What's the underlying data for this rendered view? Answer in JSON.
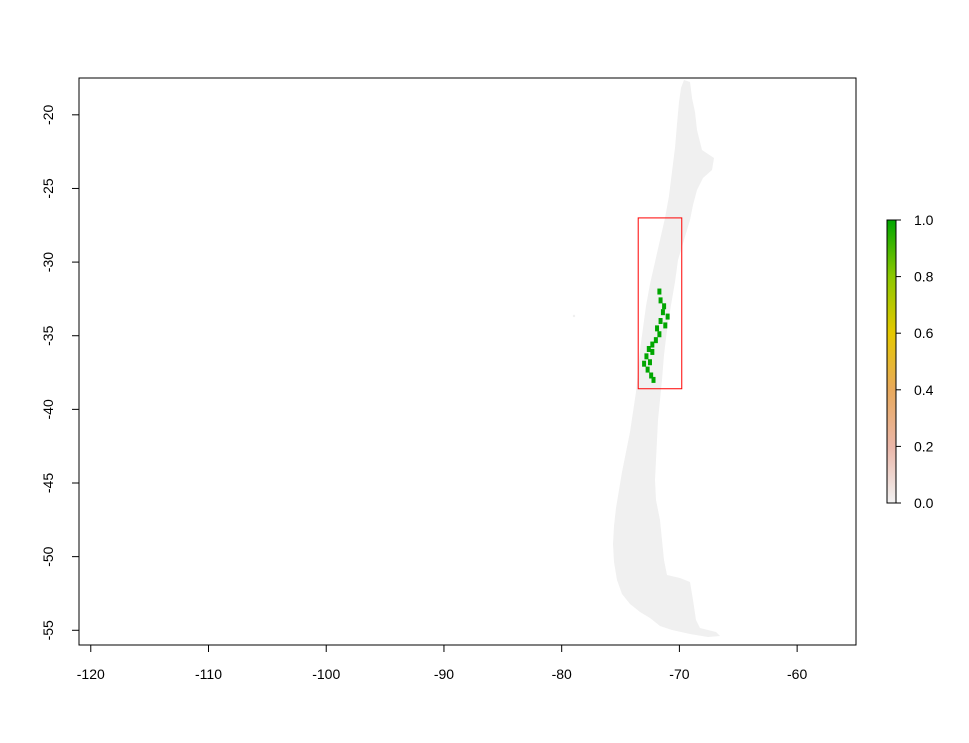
{
  "chart_data": {
    "type": "heatmap",
    "title": "",
    "xlabel": "",
    "ylabel": "",
    "xlim": [
      -121,
      -55
    ],
    "ylim": [
      -56,
      -17.5
    ],
    "x_ticks": [
      -120,
      -110,
      -100,
      -90,
      -80,
      -70,
      -60
    ],
    "y_ticks": [
      -20,
      -25,
      -30,
      -35,
      -40,
      -45,
      -50,
      -55
    ],
    "grid": false,
    "background_region": {
      "name": "Chile",
      "value": 0.0,
      "color": "#f0f0f0"
    },
    "presence_cells": [
      [
        -71.7,
        -32.0
      ],
      [
        -71.6,
        -32.6
      ],
      [
        -71.3,
        -33.0
      ],
      [
        -71.4,
        -33.4
      ],
      [
        -71.0,
        -33.7
      ],
      [
        -71.6,
        -34.0
      ],
      [
        -71.2,
        -34.3
      ],
      [
        -71.9,
        -34.5
      ],
      [
        -71.7,
        -34.9
      ],
      [
        -72.0,
        -35.3
      ],
      [
        -72.3,
        -35.6
      ],
      [
        -72.6,
        -35.9
      ],
      [
        -72.3,
        -36.1
      ],
      [
        -72.8,
        -36.4
      ],
      [
        -72.5,
        -36.8
      ],
      [
        -73.0,
        -36.9
      ],
      [
        -72.7,
        -37.3
      ],
      [
        -72.4,
        -37.7
      ],
      [
        -72.2,
        -38.0
      ]
    ],
    "extent_box": {
      "xmin": -73.5,
      "xmax": -69.8,
      "ymin": -38.6,
      "ymax": -27.0,
      "color": "#ff0000"
    },
    "colorbar": {
      "min": 0.0,
      "max": 1.0,
      "ticks": [
        "0.0",
        "0.2",
        "0.4",
        "0.6",
        "0.8",
        "1.0"
      ],
      "colors": [
        "#f2f2f2",
        "#eab6a8",
        "#e8a95c",
        "#e5c800",
        "#8dc800",
        "#00a600"
      ]
    }
  }
}
